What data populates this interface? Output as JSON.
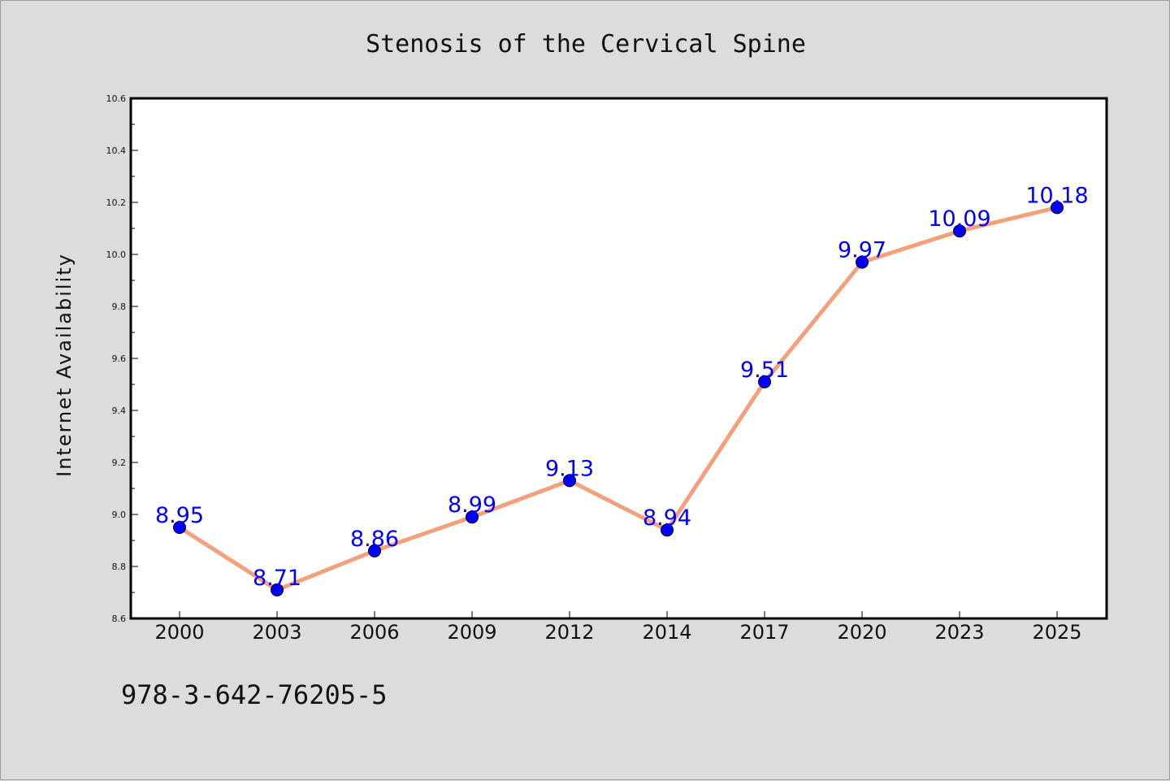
{
  "chart_data": {
    "type": "line",
    "title": "Stenosis of the Cervical Spine",
    "xlabel": "",
    "ylabel": "Internet Availability",
    "categories": [
      "2000",
      "2003",
      "2006",
      "2009",
      "2012",
      "2014",
      "2017",
      "2020",
      "2023",
      "2025"
    ],
    "series": [
      {
        "values": [
          8.95,
          8.71,
          8.86,
          8.99,
          9.13,
          8.94,
          9.51,
          9.97,
          10.09,
          10.18
        ]
      }
    ],
    "data_labels": [
      "8.95",
      "8.71",
      "8.86",
      "8.99",
      "9.13",
      "8.94",
      "9.51",
      "9.97",
      "10.09",
      "10.18"
    ],
    "ylim": [
      8.6,
      10.6
    ],
    "yticks": [
      "8.6",
      "8.8",
      "9.0",
      "9.2",
      "9.4",
      "9.6",
      "9.8",
      "10.0",
      "10.2",
      "10.4",
      "10.6"
    ],
    "grid": false,
    "line_color": "#f4a07a",
    "marker_color": "#0000ff",
    "label_color": "#0000ff"
  },
  "footer": {
    "code": "978-3-642-76205-5"
  }
}
